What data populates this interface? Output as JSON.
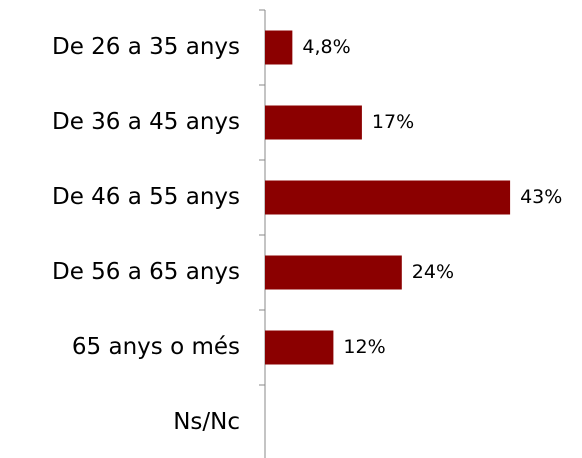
{
  "chart_data": {
    "type": "bar",
    "orientation": "horizontal",
    "categories": [
      "De 26 a 35 anys",
      "De 36 a 45 anys",
      "De 46 a 55 anys",
      "De 56 a 65 anys",
      "65 anys o més",
      "Ns/Nc"
    ],
    "values": [
      4.8,
      17,
      43,
      24,
      12,
      null
    ],
    "value_labels": [
      "4,8%",
      "17%",
      "43%",
      "24%",
      "12%",
      null
    ],
    "color": "#8b0000"
  }
}
